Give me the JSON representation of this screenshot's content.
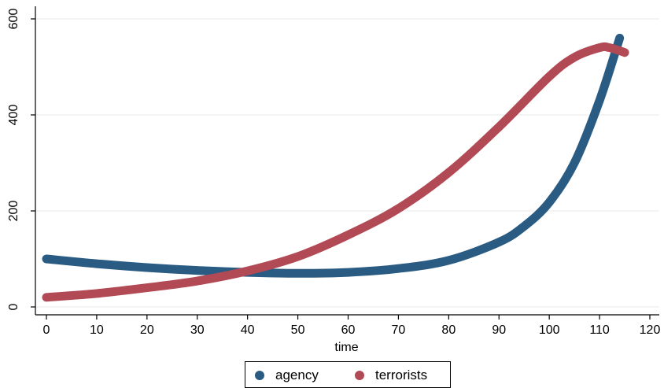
{
  "chart_data": {
    "type": "line",
    "title": "",
    "xlabel": "time",
    "ylabel": "",
    "xlim": [
      0,
      120
    ],
    "ylim": [
      0,
      600
    ],
    "x_ticks": [
      0,
      10,
      20,
      30,
      40,
      50,
      60,
      70,
      80,
      90,
      100,
      110,
      120
    ],
    "y_ticks": [
      0,
      200,
      400,
      600
    ],
    "grid": "horizontal",
    "legend_position": "bottom",
    "series": [
      {
        "name": "agency",
        "color": "#2a5b82",
        "x": [
          0,
          10,
          20,
          30,
          40,
          50,
          60,
          70,
          80,
          90,
          95,
          100,
          105,
          110,
          114
        ],
        "y": [
          100,
          90,
          82,
          76,
          72,
          70,
          72,
          80,
          97,
          135,
          168,
          218,
          300,
          430,
          560
        ]
      },
      {
        "name": "terrorists",
        "color": "#b24a55",
        "x": [
          0,
          10,
          20,
          30,
          40,
          50,
          60,
          70,
          80,
          90,
          100,
          105,
          110,
          112,
          115
        ],
        "y": [
          20,
          28,
          40,
          54,
          75,
          105,
          150,
          205,
          280,
          375,
          480,
          520,
          540,
          540,
          530
        ]
      }
    ]
  }
}
